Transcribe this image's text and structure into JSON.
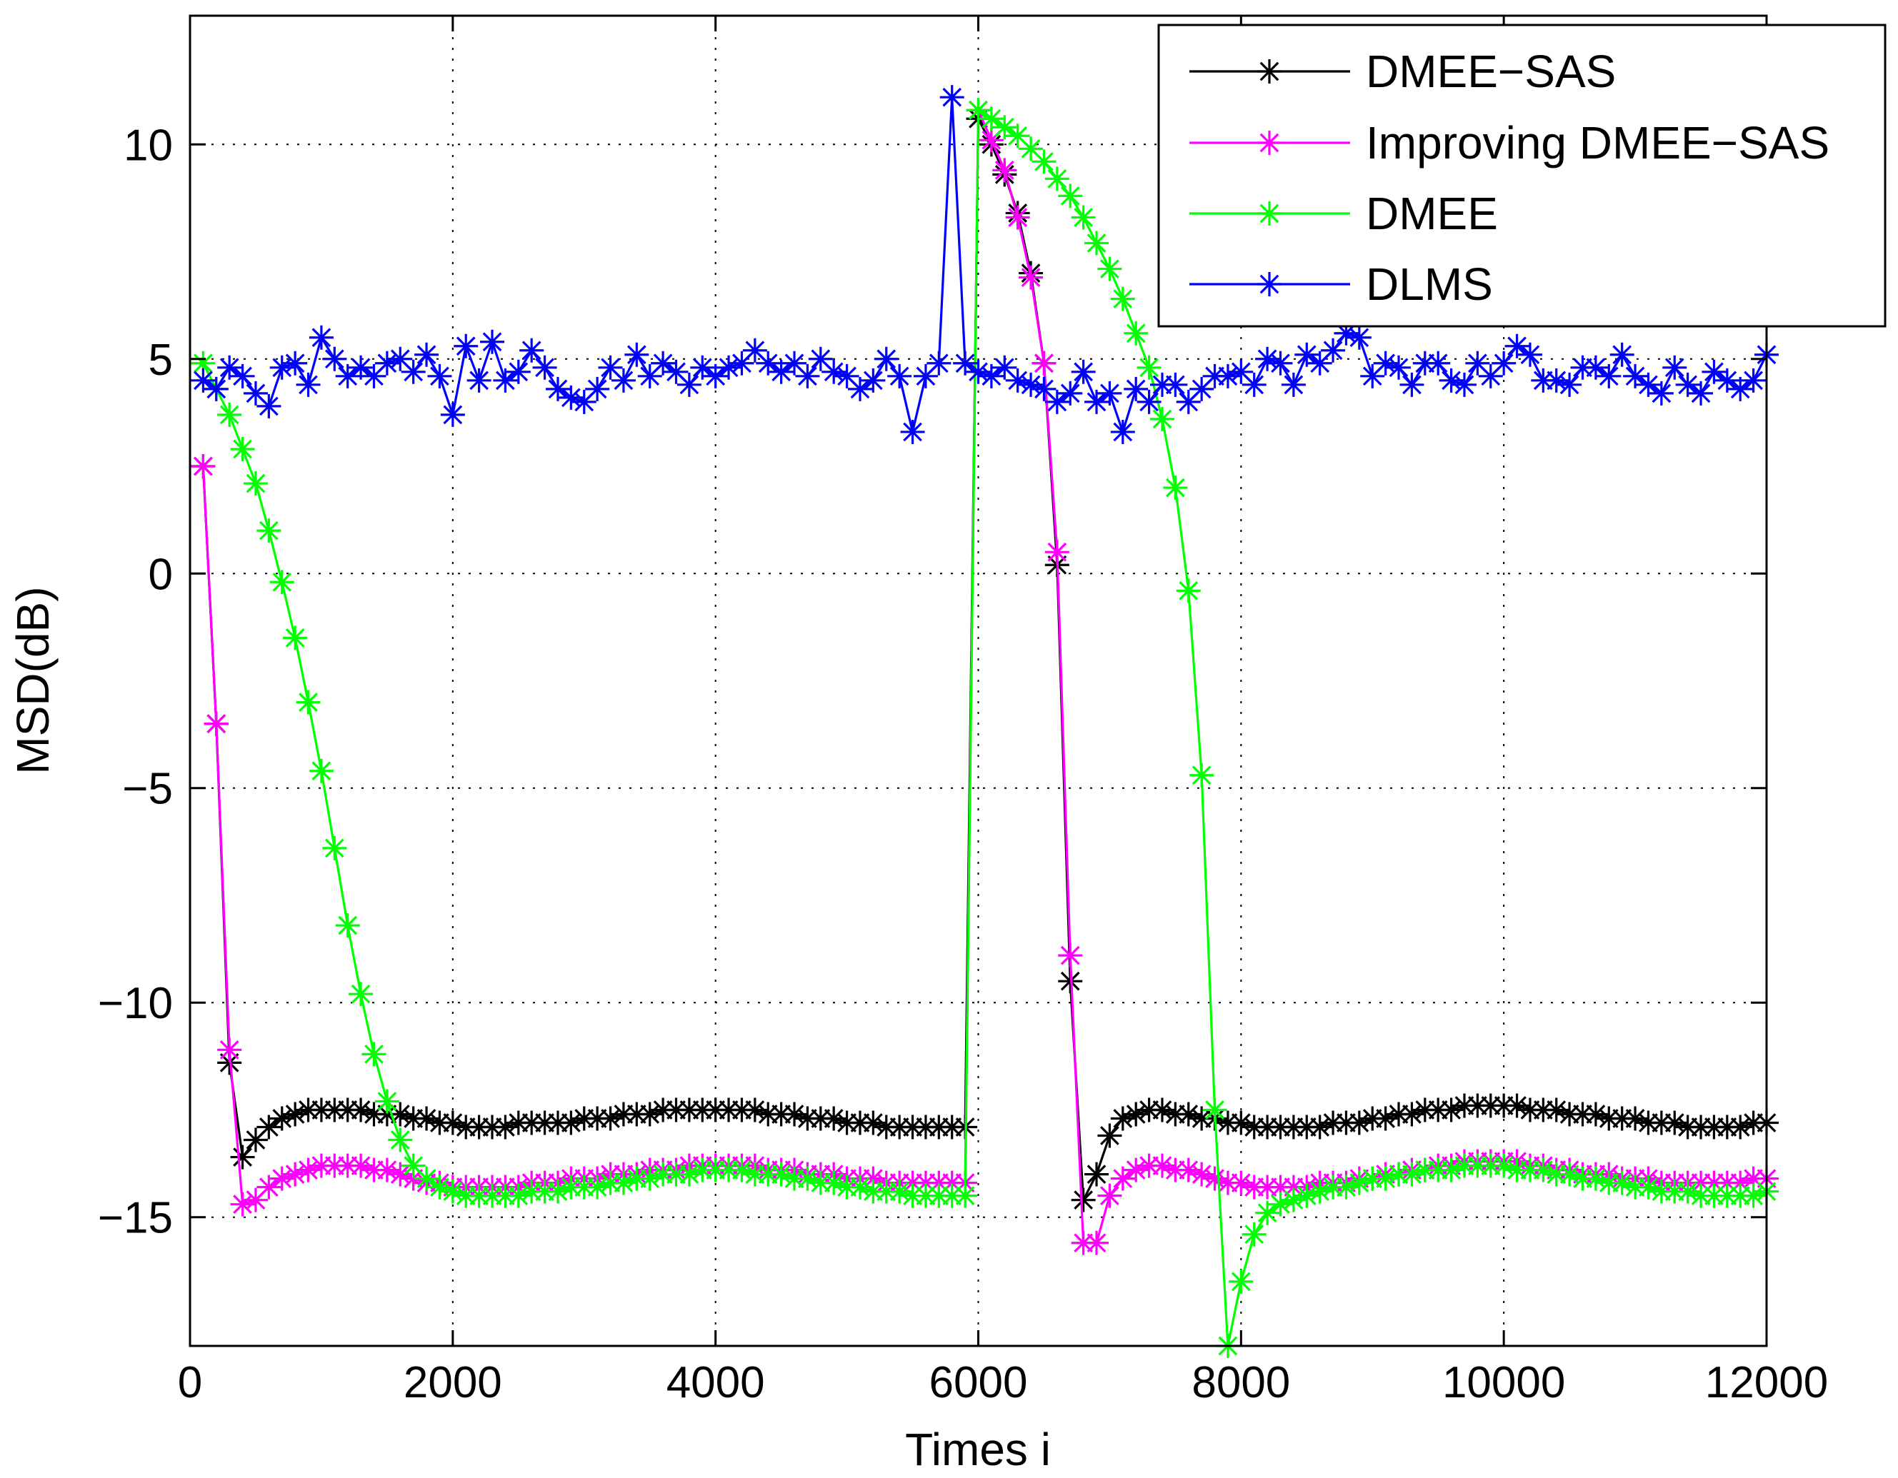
{
  "chart_data": {
    "type": "line",
    "title": "",
    "xlabel": "Times i",
    "ylabel": "MSD(dB)",
    "xlim": [
      0,
      12000
    ],
    "ylim": [
      -18,
      13
    ],
    "xticks": [
      0,
      2000,
      4000,
      6000,
      8000,
      10000,
      12000
    ],
    "yticks": [
      -15,
      -10,
      -5,
      0,
      5,
      10
    ],
    "xtick_labels": [
      "0",
      "2000",
      "4000",
      "6000",
      "8000",
      "10000",
      "12000"
    ],
    "ytick_labels": [
      "−15",
      "−10",
      "−5",
      "0",
      "5",
      "10"
    ],
    "grid": true,
    "legend_position": "top-right",
    "series": [
      {
        "name": "DMEE−SAS",
        "color": "#000000",
        "marker": "asterisk",
        "x": [
          100,
          200,
          300,
          400,
          500,
          600,
          700,
          800,
          900,
          1000,
          1100,
          1200,
          1300,
          1400,
          1500,
          1600,
          1700,
          1800,
          1900,
          2000,
          2100,
          2200,
          2300,
          2400,
          2500,
          2600,
          2700,
          2800,
          2900,
          3000,
          3100,
          3200,
          3300,
          3400,
          3500,
          3600,
          3700,
          3800,
          3900,
          4000,
          4100,
          4200,
          4300,
          4400,
          4500,
          4600,
          4700,
          4800,
          4900,
          5000,
          5100,
          5200,
          5300,
          5400,
          5500,
          5600,
          5700,
          5800,
          5900,
          6000,
          6100,
          6200,
          6300,
          6400,
          6500,
          6600,
          6700,
          6800,
          6900,
          7000,
          7100,
          7200,
          7300,
          7400,
          7500,
          7600,
          7700,
          7800,
          7900,
          8000,
          8100,
          8200,
          8300,
          8400,
          8500,
          8600,
          8700,
          8800,
          8900,
          9000,
          9100,
          9200,
          9300,
          9400,
          9500,
          9600,
          9700,
          9800,
          9900,
          10000,
          10100,
          10200,
          10300,
          10400,
          10500,
          10600,
          10700,
          10800,
          10900,
          11000,
          11100,
          11200,
          11300,
          11400,
          11500,
          11600,
          11700,
          11800,
          11900,
          12000
        ],
        "y": [
          2.5,
          -3.5,
          -11.4,
          -13.6,
          -13.2,
          -12.9,
          -12.7,
          -12.6,
          -12.5,
          -12.5,
          -12.5,
          -12.5,
          -12.5,
          -12.6,
          -12.6,
          -12.6,
          -12.7,
          -12.7,
          -12.8,
          -12.8,
          -12.9,
          -12.9,
          -12.9,
          -12.9,
          -12.8,
          -12.8,
          -12.8,
          -12.8,
          -12.8,
          -12.7,
          -12.7,
          -12.7,
          -12.6,
          -12.6,
          -12.6,
          -12.5,
          -12.5,
          -12.5,
          -12.5,
          -12.5,
          -12.5,
          -12.5,
          -12.5,
          -12.6,
          -12.6,
          -12.6,
          -12.7,
          -12.7,
          -12.7,
          -12.8,
          -12.8,
          -12.8,
          -12.9,
          -12.9,
          -12.9,
          -12.9,
          -12.9,
          -12.9,
          -12.9,
          10.6,
          10.0,
          9.3,
          8.4,
          7.0,
          4.9,
          0.2,
          -9.5,
          -14.6,
          -14.0,
          -13.1,
          -12.7,
          -12.6,
          -12.5,
          -12.5,
          -12.6,
          -12.6,
          -12.7,
          -12.7,
          -12.8,
          -12.8,
          -12.9,
          -12.9,
          -12.9,
          -12.9,
          -12.9,
          -12.9,
          -12.8,
          -12.8,
          -12.8,
          -12.7,
          -12.7,
          -12.6,
          -12.6,
          -12.5,
          -12.5,
          -12.5,
          -12.4,
          -12.4,
          -12.4,
          -12.4,
          -12.4,
          -12.5,
          -12.5,
          -12.5,
          -12.6,
          -12.6,
          -12.6,
          -12.7,
          -12.7,
          -12.7,
          -12.8,
          -12.8,
          -12.8,
          -12.9,
          -12.9,
          -12.9,
          -12.9,
          -12.9,
          -12.8,
          -12.8
        ]
      },
      {
        "name": "Improving DMEE−SAS",
        "color": "#ff00ff",
        "marker": "asterisk",
        "x": [
          100,
          200,
          300,
          400,
          500,
          600,
          700,
          800,
          900,
          1000,
          1100,
          1200,
          1300,
          1400,
          1500,
          1600,
          1700,
          1800,
          1900,
          2000,
          2100,
          2200,
          2300,
          2400,
          2500,
          2600,
          2700,
          2800,
          2900,
          3000,
          3100,
          3200,
          3300,
          3400,
          3500,
          3600,
          3700,
          3800,
          3900,
          4000,
          4100,
          4200,
          4300,
          4400,
          4500,
          4600,
          4700,
          4800,
          4900,
          5000,
          5100,
          5200,
          5300,
          5400,
          5500,
          5600,
          5700,
          5800,
          5900,
          6000,
          6100,
          6200,
          6300,
          6400,
          6500,
          6600,
          6700,
          6800,
          6900,
          7000,
          7100,
          7200,
          7300,
          7400,
          7500,
          7600,
          7700,
          7800,
          7900,
          8000,
          8100,
          8200,
          8300,
          8400,
          8500,
          8600,
          8700,
          8800,
          8900,
          9000,
          9100,
          9200,
          9300,
          9400,
          9500,
          9600,
          9700,
          9800,
          9900,
          10000,
          10100,
          10200,
          10300,
          10400,
          10500,
          10600,
          10700,
          10800,
          10900,
          11000,
          11100,
          11200,
          11300,
          11400,
          11500,
          11600,
          11700,
          11800,
          11900,
          12000
        ],
        "y": [
          2.5,
          -3.5,
          -11.1,
          -14.7,
          -14.6,
          -14.3,
          -14.1,
          -14.0,
          -13.9,
          -13.8,
          -13.8,
          -13.8,
          -13.8,
          -13.9,
          -13.9,
          -14.0,
          -14.1,
          -14.2,
          -14.2,
          -14.3,
          -14.3,
          -14.3,
          -14.3,
          -14.3,
          -14.3,
          -14.2,
          -14.2,
          -14.2,
          -14.1,
          -14.1,
          -14.1,
          -14.0,
          -14.0,
          -14.0,
          -13.9,
          -13.9,
          -13.9,
          -13.8,
          -13.8,
          -13.8,
          -13.8,
          -13.8,
          -13.8,
          -13.9,
          -13.9,
          -13.9,
          -14.0,
          -14.0,
          -14.0,
          -14.1,
          -14.1,
          -14.1,
          -14.2,
          -14.2,
          -14.2,
          -14.2,
          -14.2,
          -14.2,
          -14.2,
          10.8,
          10.1,
          9.4,
          8.3,
          6.9,
          4.9,
          0.5,
          -8.9,
          -15.6,
          -15.6,
          -14.5,
          -14.1,
          -13.9,
          -13.8,
          -13.8,
          -13.9,
          -13.9,
          -14.0,
          -14.1,
          -14.2,
          -14.2,
          -14.3,
          -14.3,
          -14.3,
          -14.3,
          -14.3,
          -14.2,
          -14.2,
          -14.2,
          -14.1,
          -14.1,
          -14.0,
          -14.0,
          -13.9,
          -13.9,
          -13.8,
          -13.8,
          -13.7,
          -13.7,
          -13.7,
          -13.7,
          -13.7,
          -13.8,
          -13.8,
          -13.9,
          -13.9,
          -14.0,
          -14.0,
          -14.0,
          -14.1,
          -14.1,
          -14.1,
          -14.2,
          -14.2,
          -14.2,
          -14.2,
          -14.2,
          -14.2,
          -14.2,
          -14.1,
          -14.1
        ]
      },
      {
        "name": "DMEE",
        "color": "#00ff00",
        "marker": "asterisk",
        "x": [
          100,
          200,
          300,
          400,
          500,
          600,
          700,
          800,
          900,
          1000,
          1100,
          1200,
          1300,
          1400,
          1500,
          1600,
          1700,
          1800,
          1900,
          2000,
          2100,
          2200,
          2300,
          2400,
          2500,
          2600,
          2700,
          2800,
          2900,
          3000,
          3100,
          3200,
          3300,
          3400,
          3500,
          3600,
          3700,
          3800,
          3900,
          4000,
          4100,
          4200,
          4300,
          4400,
          4500,
          4600,
          4700,
          4800,
          4900,
          5000,
          5100,
          5200,
          5300,
          5400,
          5500,
          5600,
          5700,
          5800,
          5900,
          6000,
          6100,
          6200,
          6300,
          6400,
          6500,
          6600,
          6700,
          6800,
          6900,
          7000,
          7100,
          7200,
          7300,
          7400,
          7500,
          7600,
          7700,
          7800,
          7900,
          8000,
          8100,
          8200,
          8300,
          8400,
          8500,
          8600,
          8700,
          8800,
          8900,
          9000,
          9100,
          9200,
          9300,
          9400,
          9500,
          9600,
          9700,
          9800,
          9900,
          10000,
          10100,
          10200,
          10300,
          10400,
          10500,
          10600,
          10700,
          10800,
          10900,
          11000,
          11100,
          11200,
          11300,
          11400,
          11500,
          11600,
          11700,
          11800,
          11900,
          12000
        ],
        "y": [
          4.9,
          4.3,
          3.7,
          2.9,
          2.1,
          1.0,
          -0.2,
          -1.5,
          -3.0,
          -4.6,
          -6.4,
          -8.2,
          -9.8,
          -11.2,
          -12.3,
          -13.2,
          -13.8,
          -14.1,
          -14.3,
          -14.4,
          -14.5,
          -14.5,
          -14.5,
          -14.5,
          -14.5,
          -14.4,
          -14.4,
          -14.4,
          -14.3,
          -14.3,
          -14.3,
          -14.2,
          -14.2,
          -14.1,
          -14.1,
          -14.0,
          -14.0,
          -14.0,
          -13.9,
          -13.9,
          -13.9,
          -13.9,
          -14.0,
          -14.0,
          -14.0,
          -14.1,
          -14.1,
          -14.2,
          -14.2,
          -14.3,
          -14.3,
          -14.4,
          -14.4,
          -14.4,
          -14.5,
          -14.5,
          -14.5,
          -14.5,
          -14.5,
          10.8,
          10.6,
          10.4,
          10.2,
          9.9,
          9.6,
          9.2,
          8.8,
          8.3,
          7.7,
          7.1,
          6.4,
          5.6,
          4.8,
          3.6,
          2.0,
          -0.4,
          -4.7,
          -12.5,
          -18.0,
          -16.5,
          -15.4,
          -14.9,
          -14.7,
          -14.6,
          -14.5,
          -14.4,
          -14.3,
          -14.3,
          -14.2,
          -14.1,
          -14.1,
          -14.0,
          -14.0,
          -13.9,
          -13.9,
          -13.9,
          -13.8,
          -13.8,
          -13.8,
          -13.8,
          -13.9,
          -13.9,
          -13.9,
          -14.0,
          -14.0,
          -14.1,
          -14.1,
          -14.2,
          -14.2,
          -14.3,
          -14.3,
          -14.4,
          -14.4,
          -14.4,
          -14.5,
          -14.5,
          -14.5,
          -14.5,
          -14.5,
          -14.4
        ]
      },
      {
        "name": "DLMS",
        "color": "#0000ff",
        "marker": "asterisk",
        "x": [
          100,
          200,
          300,
          400,
          500,
          600,
          700,
          800,
          900,
          1000,
          1100,
          1200,
          1300,
          1400,
          1500,
          1600,
          1700,
          1800,
          1900,
          2000,
          2100,
          2200,
          2300,
          2400,
          2500,
          2600,
          2700,
          2800,
          2900,
          3000,
          3100,
          3200,
          3300,
          3400,
          3500,
          3600,
          3700,
          3800,
          3900,
          4000,
          4100,
          4200,
          4300,
          4400,
          4500,
          4600,
          4700,
          4800,
          4900,
          5000,
          5100,
          5200,
          5300,
          5400,
          5500,
          5600,
          5700,
          5800,
          5900,
          6000,
          6100,
          6200,
          6300,
          6400,
          6500,
          6600,
          6700,
          6800,
          6900,
          7000,
          7100,
          7200,
          7300,
          7400,
          7500,
          7600,
          7700,
          7800,
          7900,
          8000,
          8100,
          8200,
          8300,
          8400,
          8500,
          8600,
          8700,
          8800,
          8900,
          9000,
          9100,
          9200,
          9300,
          9400,
          9500,
          9600,
          9700,
          9800,
          9900,
          10000,
          10100,
          10200,
          10300,
          10400,
          10500,
          10600,
          10700,
          10800,
          10900,
          11000,
          11100,
          11200,
          11300,
          11400,
          11500,
          11600,
          11700,
          11800,
          11900,
          12000
        ],
        "y": [
          4.5,
          4.3,
          4.8,
          4.6,
          4.2,
          3.9,
          4.8,
          4.9,
          4.4,
          5.5,
          5.0,
          4.6,
          4.8,
          4.6,
          4.9,
          5.0,
          4.7,
          5.1,
          4.6,
          3.7,
          5.3,
          4.5,
          5.4,
          4.5,
          4.7,
          5.2,
          4.8,
          4.3,
          4.1,
          4.0,
          4.3,
          4.8,
          4.5,
          5.1,
          4.6,
          4.9,
          4.7,
          4.4,
          4.8,
          4.6,
          4.8,
          4.9,
          5.2,
          4.9,
          4.7,
          4.9,
          4.6,
          5.0,
          4.7,
          4.6,
          4.3,
          4.5,
          5.0,
          4.6,
          3.3,
          4.6,
          4.9,
          11.1,
          4.9,
          4.7,
          4.6,
          4.8,
          4.5,
          4.4,
          4.3,
          4.0,
          4.2,
          4.7,
          4.0,
          4.2,
          3.3,
          4.3,
          4.0,
          4.4,
          4.4,
          4.0,
          4.3,
          4.6,
          4.6,
          4.7,
          4.4,
          5.0,
          4.9,
          4.4,
          5.1,
          4.9,
          5.2,
          5.6,
          5.5,
          4.6,
          4.9,
          4.8,
          4.4,
          4.9,
          4.9,
          4.5,
          4.4,
          4.9,
          4.6,
          4.9,
          5.3,
          5.1,
          4.5,
          4.5,
          4.4,
          4.8,
          4.8,
          4.6,
          5.1,
          4.6,
          4.4,
          4.2,
          4.8,
          4.4,
          4.2,
          4.7,
          4.5,
          4.3,
          4.5,
          5.1
        ]
      }
    ]
  }
}
